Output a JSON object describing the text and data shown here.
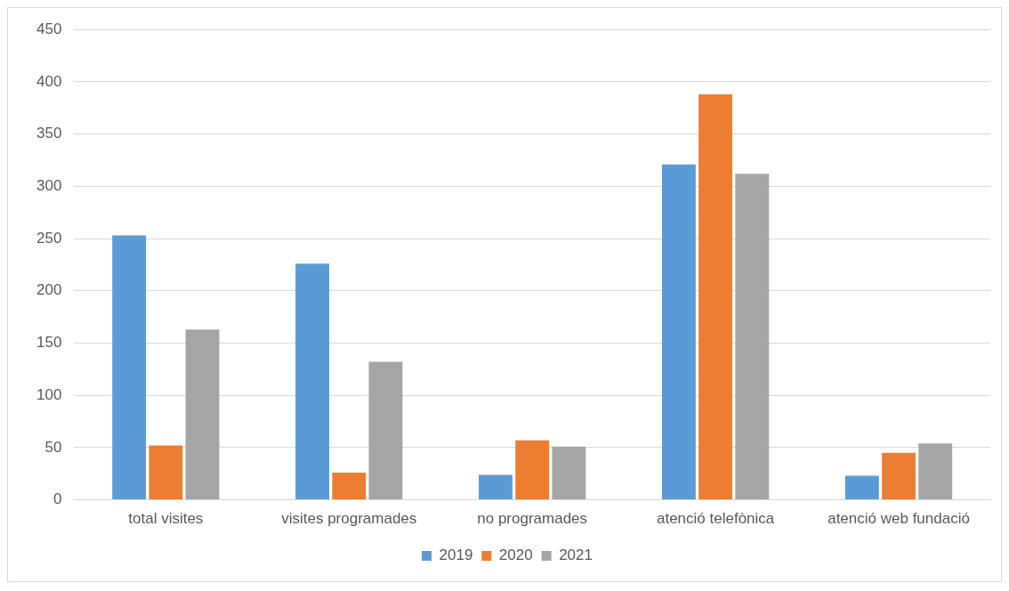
{
  "chart_data": {
    "type": "bar",
    "categories": [
      "total visites",
      "visites programades",
      "no programades",
      "atenció telefònica",
      "atenció web fundació"
    ],
    "series": [
      {
        "name": "2019",
        "color": "#5b9bd5",
        "values": [
          253,
          226,
          24,
          321,
          23
        ]
      },
      {
        "name": "2020",
        "color": "#ed7d31",
        "values": [
          52,
          26,
          57,
          388,
          45
        ]
      },
      {
        "name": "2021",
        "color": "#a5a5a5",
        "values": [
          163,
          132,
          51,
          312,
          54
        ]
      }
    ],
    "ylim": [
      0,
      450
    ],
    "yticks": [
      0,
      50,
      100,
      150,
      200,
      250,
      300,
      350,
      400,
      450
    ],
    "grid": "y",
    "legend": "bottom"
  }
}
